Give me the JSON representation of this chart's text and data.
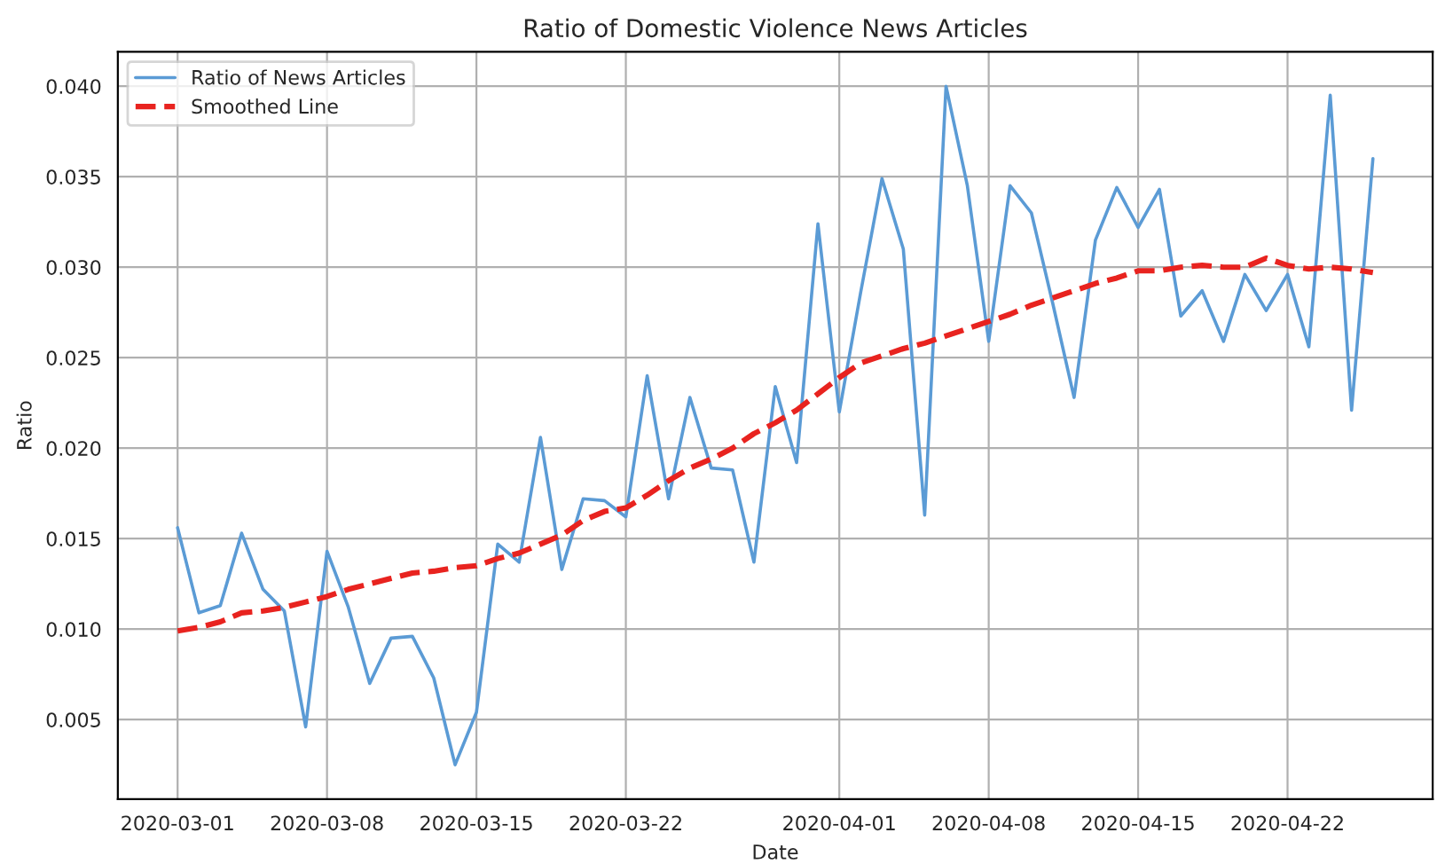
{
  "chart_data": {
    "type": "line",
    "title": "Ratio of Domestic Violence News Articles",
    "xlabel": "Date",
    "ylabel": "Ratio",
    "x": [
      "2020-03-01",
      "2020-03-02",
      "2020-03-03",
      "2020-03-04",
      "2020-03-05",
      "2020-03-06",
      "2020-03-07",
      "2020-03-08",
      "2020-03-09",
      "2020-03-10",
      "2020-03-11",
      "2020-03-12",
      "2020-03-13",
      "2020-03-14",
      "2020-03-15",
      "2020-03-16",
      "2020-03-17",
      "2020-03-18",
      "2020-03-19",
      "2020-03-20",
      "2020-03-21",
      "2020-03-22",
      "2020-03-23",
      "2020-03-24",
      "2020-03-25",
      "2020-03-26",
      "2020-03-27",
      "2020-03-28",
      "2020-03-29",
      "2020-03-30",
      "2020-03-31",
      "2020-04-01",
      "2020-04-02",
      "2020-04-03",
      "2020-04-04",
      "2020-04-05",
      "2020-04-06",
      "2020-04-07",
      "2020-04-08",
      "2020-04-09",
      "2020-04-10",
      "2020-04-11",
      "2020-04-12",
      "2020-04-13",
      "2020-04-14",
      "2020-04-15",
      "2020-04-16",
      "2020-04-17",
      "2020-04-18",
      "2020-04-19",
      "2020-04-20",
      "2020-04-21",
      "2020-04-22",
      "2020-04-23",
      "2020-04-24",
      "2020-04-25",
      "2020-04-26"
    ],
    "series": [
      {
        "name": "Ratio of News Articles",
        "color": "#5b9bd5",
        "line_style": "solid",
        "values": [
          0.0156,
          0.0109,
          0.0113,
          0.0153,
          0.0122,
          0.011,
          0.0046,
          0.0143,
          0.0112,
          0.007,
          0.0095,
          0.0096,
          0.0073,
          0.0025,
          0.0054,
          0.0147,
          0.0137,
          0.0206,
          0.0133,
          0.0172,
          0.0171,
          0.0162,
          0.024,
          0.0172,
          0.0228,
          0.0189,
          0.0188,
          0.0137,
          0.0234,
          0.0192,
          0.0324,
          0.022,
          0.0286,
          0.0349,
          0.031,
          0.0163,
          0.04,
          0.0345,
          0.0259,
          0.0345,
          0.033,
          0.028,
          0.0228,
          0.0315,
          0.0344,
          0.0322,
          0.0343,
          0.0273,
          0.0287,
          0.0259,
          0.0296,
          0.0276,
          0.0296,
          0.0256,
          0.0395,
          0.0221,
          0.036
        ]
      },
      {
        "name": "Smoothed Line",
        "color": "#e8231f",
        "line_style": "dashed",
        "values": [
          0.0099,
          0.0101,
          0.0104,
          0.0109,
          0.011,
          0.0112,
          0.0115,
          0.0118,
          0.0122,
          0.0125,
          0.0128,
          0.0131,
          0.0132,
          0.0134,
          0.0135,
          0.0139,
          0.0142,
          0.0147,
          0.0152,
          0.016,
          0.0165,
          0.0167,
          0.0174,
          0.0182,
          0.0189,
          0.0194,
          0.02,
          0.0208,
          0.0214,
          0.0221,
          0.023,
          0.0239,
          0.0247,
          0.0251,
          0.0255,
          0.0258,
          0.0262,
          0.0266,
          0.027,
          0.0274,
          0.0279,
          0.0283,
          0.0287,
          0.0291,
          0.0294,
          0.0298,
          0.0298,
          0.03,
          0.0301,
          0.03,
          0.03,
          0.0305,
          0.0301,
          0.0299,
          0.03,
          0.0299,
          0.0297
        ]
      }
    ],
    "xlim": [
      "2020-02-27T04:48",
      "2020-04-28T19:12"
    ],
    "xticks": [
      {
        "value": "2020-03-01",
        "label": "2020-03-01"
      },
      {
        "value": "2020-03-08",
        "label": "2020-03-08"
      },
      {
        "value": "2020-03-15",
        "label": "2020-03-15"
      },
      {
        "value": "2020-03-22",
        "label": "2020-03-22"
      },
      {
        "value": "2020-04-01",
        "label": "2020-04-01"
      },
      {
        "value": "2020-04-08",
        "label": "2020-04-08"
      },
      {
        "value": "2020-04-15",
        "label": "2020-04-15"
      },
      {
        "value": "2020-04-22",
        "label": "2020-04-22"
      }
    ],
    "ylim": [
      0.0006,
      0.0419
    ],
    "yticks": [
      {
        "value": 0.005,
        "label": "0.005"
      },
      {
        "value": 0.01,
        "label": "0.010"
      },
      {
        "value": 0.015,
        "label": "0.015"
      },
      {
        "value": 0.02,
        "label": "0.020"
      },
      {
        "value": 0.025,
        "label": "0.025"
      },
      {
        "value": 0.03,
        "label": "0.030"
      },
      {
        "value": 0.035,
        "label": "0.035"
      },
      {
        "value": 0.04,
        "label": "0.040"
      }
    ],
    "grid": true,
    "legend": "top left"
  }
}
